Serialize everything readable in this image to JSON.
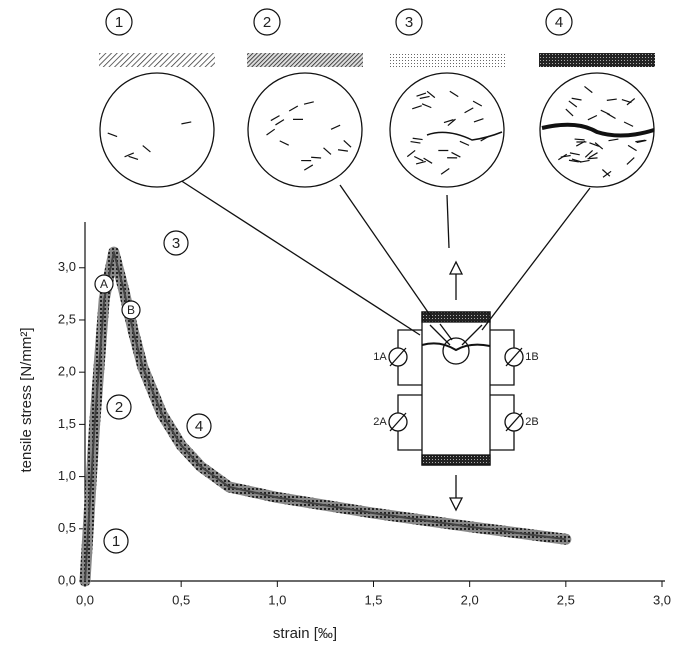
{
  "chart_data": {
    "type": "line",
    "xlabel": "strain [‰]",
    "ylabel": "tensile stress [N/mm²]",
    "x": [
      0,
      0.05,
      0.1,
      0.15,
      0.2,
      0.25,
      0.3,
      0.4,
      0.5,
      0.6,
      0.75,
      1.0,
      1.5,
      2.0,
      2.5
    ],
    "values": [
      0,
      1.5,
      2.7,
      3.15,
      2.8,
      2.4,
      2.05,
      1.6,
      1.3,
      1.1,
      0.9,
      0.8,
      0.65,
      0.52,
      0.4
    ],
    "color": "#444444",
    "xlim": [
      0,
      3.0
    ],
    "ylim": [
      0,
      3.4
    ],
    "xticks": [
      {
        "value": 0,
        "label": "0,0"
      },
      {
        "value": 0.5,
        "label": "0,5"
      },
      {
        "value": 1.0,
        "label": "1,0"
      },
      {
        "value": 1.5,
        "label": "1,5"
      },
      {
        "value": 2.0,
        "label": "2,0"
      },
      {
        "value": 2.5,
        "label": "2,5"
      },
      {
        "value": 3.0,
        "label": "3,0"
      }
    ],
    "yticks": [
      {
        "value": 0,
        "label": "0,0"
      },
      {
        "value": 0.5,
        "label": "0,5"
      },
      {
        "value": 1.0,
        "label": "1,0"
      },
      {
        "value": 1.5,
        "label": "1,5"
      },
      {
        "value": 2.0,
        "label": "2,0"
      },
      {
        "value": 2.5,
        "label": "2,5"
      },
      {
        "value": 3.0,
        "label": "3,0"
      }
    ],
    "annotations": [
      "1",
      "2",
      "3",
      "4",
      "A",
      "B"
    ],
    "stage_labels": [
      "1",
      "2",
      "3",
      "4"
    ],
    "gauge_labels": [
      "1A",
      "1B",
      "2A",
      "2B"
    ]
  }
}
